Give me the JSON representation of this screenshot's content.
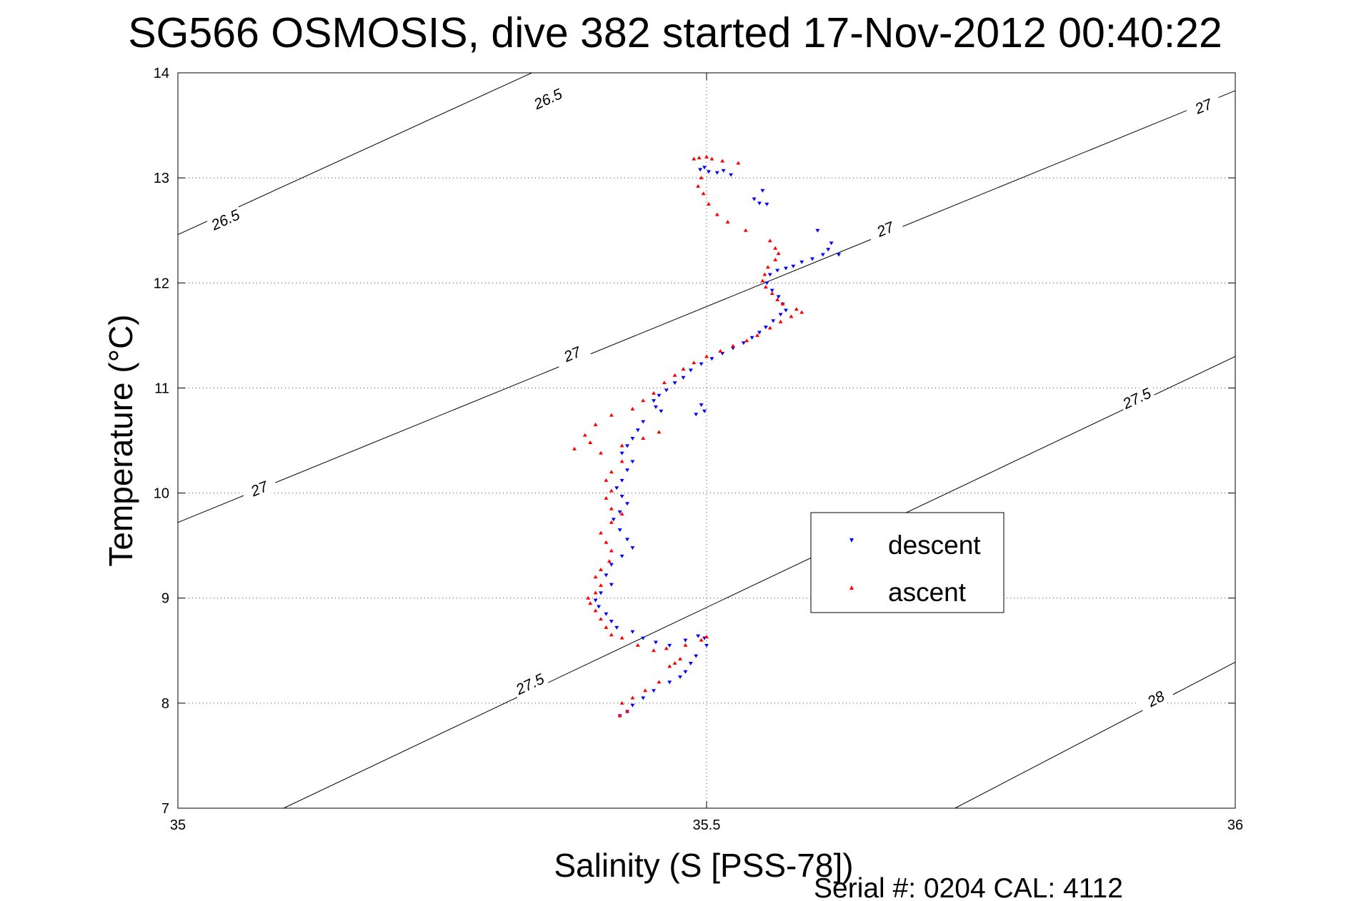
{
  "chart_data": {
    "type": "scatter",
    "title": "SG566 OSMOSIS, dive 382 started 17-Nov-2012 00:40:22",
    "xlabel": "Salinity (S [PSS-78])",
    "ylabel": "Temperature (°C)",
    "xlim": [
      35,
      36
    ],
    "ylim": [
      7,
      14
    ],
    "xticks": [
      35,
      35.5,
      36
    ],
    "xtick_labels": [
      "35",
      "35.5",
      "36"
    ],
    "yticks": [
      7,
      8,
      9,
      10,
      11,
      12,
      13,
      14
    ],
    "ytick_labels": [
      "7",
      "8",
      "9",
      "10",
      "11",
      "12",
      "13",
      "14"
    ],
    "grid": true,
    "legend_position": "center-right",
    "footer": "Serial #: 0204  CAL: 4112",
    "colors": {
      "descent": "#0000ff",
      "ascent": "#ff0000",
      "contour": "#000000"
    },
    "contours": [
      {
        "level": "26.5",
        "points": [
          [
            35.0,
            12.46
          ],
          [
            35.4,
            14.3
          ]
        ],
        "label_points": [
          [
            35.045,
            12.6
          ],
          [
            35.35,
            13.75
          ]
        ]
      },
      {
        "level": "27",
        "points": [
          [
            35.0,
            9.72
          ],
          [
            36.0,
            13.83
          ]
        ],
        "label_points": [
          [
            35.077,
            10.04
          ],
          [
            35.373,
            11.32
          ],
          [
            35.669,
            12.51
          ],
          [
            35.97,
            13.68
          ]
        ]
      },
      {
        "level": "27.5",
        "points": [
          [
            35.1,
            7.0
          ],
          [
            36.0,
            11.3
          ]
        ],
        "label_points": [
          [
            35.333,
            8.18
          ],
          [
            35.907,
            10.9
          ]
        ]
      },
      {
        "level": "28",
        "points": [
          [
            35.735,
            7.0
          ],
          [
            36.0,
            8.39
          ]
        ],
        "label_points": [
          [
            35.925,
            8.04
          ]
        ]
      }
    ],
    "series": [
      {
        "name": "descent",
        "marker": "triangle-down",
        "points": [
          [
            35.494,
            13.08
          ],
          [
            35.498,
            13.1
          ],
          [
            35.502,
            13.06
          ],
          [
            35.51,
            13.05
          ],
          [
            35.516,
            13.07
          ],
          [
            35.523,
            13.03
          ],
          [
            35.545,
            12.8
          ],
          [
            35.55,
            12.76
          ],
          [
            35.557,
            12.75
          ],
          [
            35.553,
            12.88
          ],
          [
            35.605,
            12.5
          ],
          [
            35.615,
            12.32
          ],
          [
            35.618,
            12.38
          ],
          [
            35.625,
            12.27
          ],
          [
            35.61,
            12.27
          ],
          [
            35.6,
            12.23
          ],
          [
            35.59,
            12.2
          ],
          [
            35.582,
            12.16
          ],
          [
            35.575,
            12.14
          ],
          [
            35.567,
            12.12
          ],
          [
            35.56,
            12.08
          ],
          [
            35.557,
            12.0
          ],
          [
            35.562,
            11.93
          ],
          [
            35.568,
            11.87
          ],
          [
            35.572,
            11.8
          ],
          [
            35.575,
            11.74
          ],
          [
            35.57,
            11.7
          ],
          [
            35.563,
            11.64
          ],
          [
            35.556,
            11.58
          ],
          [
            35.55,
            11.53
          ],
          [
            35.543,
            11.48
          ],
          [
            35.535,
            11.43
          ],
          [
            35.525,
            11.38
          ],
          [
            35.515,
            11.33
          ],
          [
            35.505,
            11.28
          ],
          [
            35.495,
            11.23
          ],
          [
            35.485,
            11.17
          ],
          [
            35.478,
            11.1
          ],
          [
            35.47,
            11.05
          ],
          [
            35.462,
            10.98
          ],
          [
            35.455,
            10.93
          ],
          [
            35.45,
            10.88
          ],
          [
            35.452,
            10.82
          ],
          [
            35.457,
            10.78
          ],
          [
            35.495,
            10.84
          ],
          [
            35.498,
            10.78
          ],
          [
            35.49,
            10.75
          ],
          [
            35.44,
            10.68
          ],
          [
            35.435,
            10.6
          ],
          [
            35.43,
            10.52
          ],
          [
            35.425,
            10.45
          ],
          [
            35.42,
            10.38
          ],
          [
            35.43,
            10.3
          ],
          [
            35.425,
            10.22
          ],
          [
            35.42,
            10.12
          ],
          [
            35.415,
            10.05
          ],
          [
            35.42,
            9.97
          ],
          [
            35.425,
            9.9
          ],
          [
            35.418,
            9.82
          ],
          [
            35.412,
            9.75
          ],
          [
            35.418,
            9.65
          ],
          [
            35.425,
            9.56
          ],
          [
            35.43,
            9.48
          ],
          [
            35.42,
            9.4
          ],
          [
            35.41,
            9.32
          ],
          [
            35.405,
            9.22
          ],
          [
            35.41,
            9.13
          ],
          [
            35.4,
            9.05
          ],
          [
            35.395,
            8.98
          ],
          [
            35.398,
            8.92
          ],
          [
            35.405,
            8.85
          ],
          [
            35.41,
            8.78
          ],
          [
            35.415,
            8.72
          ],
          [
            35.43,
            8.68
          ],
          [
            35.44,
            8.62
          ],
          [
            35.452,
            8.58
          ],
          [
            35.465,
            8.55
          ],
          [
            35.48,
            8.6
          ],
          [
            35.492,
            8.64
          ],
          [
            35.498,
            8.62
          ],
          [
            35.5,
            8.55
          ],
          [
            35.49,
            8.45
          ],
          [
            35.485,
            8.38
          ],
          [
            35.48,
            8.3
          ],
          [
            35.475,
            8.25
          ],
          [
            35.465,
            8.2
          ],
          [
            35.45,
            8.12
          ],
          [
            35.44,
            8.05
          ],
          [
            35.43,
            7.98
          ],
          [
            35.425,
            7.92
          ],
          [
            35.418,
            7.88
          ]
        ]
      },
      {
        "name": "ascent",
        "marker": "triangle-up",
        "points": [
          [
            35.488,
            13.18
          ],
          [
            35.493,
            13.19
          ],
          [
            35.5,
            13.2
          ],
          [
            35.505,
            13.18
          ],
          [
            35.515,
            13.16
          ],
          [
            35.53,
            13.14
          ],
          [
            35.495,
            13.0
          ],
          [
            35.492,
            12.92
          ],
          [
            35.497,
            12.85
          ],
          [
            35.502,
            12.75
          ],
          [
            35.51,
            12.65
          ],
          [
            35.52,
            12.58
          ],
          [
            35.537,
            12.5
          ],
          [
            35.56,
            12.4
          ],
          [
            35.565,
            12.33
          ],
          [
            35.568,
            12.28
          ],
          [
            35.565,
            12.22
          ],
          [
            35.558,
            12.15
          ],
          [
            35.555,
            12.08
          ],
          [
            35.553,
            12.02
          ],
          [
            35.556,
            11.96
          ],
          [
            35.562,
            11.9
          ],
          [
            35.567,
            11.84
          ],
          [
            35.572,
            11.8
          ],
          [
            35.585,
            11.75
          ],
          [
            35.59,
            11.72
          ],
          [
            35.58,
            11.68
          ],
          [
            35.57,
            11.63
          ],
          [
            35.56,
            11.57
          ],
          [
            35.548,
            11.5
          ],
          [
            35.538,
            11.45
          ],
          [
            35.525,
            11.4
          ],
          [
            35.513,
            11.35
          ],
          [
            35.5,
            11.3
          ],
          [
            35.488,
            11.24
          ],
          [
            35.478,
            11.18
          ],
          [
            35.47,
            11.12
          ],
          [
            35.46,
            11.05
          ],
          [
            35.45,
            10.95
          ],
          [
            35.44,
            10.88
          ],
          [
            35.43,
            10.8
          ],
          [
            35.41,
            10.74
          ],
          [
            35.395,
            10.65
          ],
          [
            35.385,
            10.55
          ],
          [
            35.39,
            10.48
          ],
          [
            35.375,
            10.42
          ],
          [
            35.4,
            10.38
          ],
          [
            35.42,
            10.45
          ],
          [
            35.44,
            10.52
          ],
          [
            35.455,
            10.58
          ],
          [
            35.42,
            10.3
          ],
          [
            35.41,
            10.2
          ],
          [
            35.405,
            10.12
          ],
          [
            35.41,
            10.02
          ],
          [
            35.405,
            9.95
          ],
          [
            35.41,
            9.85
          ],
          [
            35.42,
            9.8
          ],
          [
            35.41,
            9.72
          ],
          [
            35.4,
            9.62
          ],
          [
            35.405,
            9.53
          ],
          [
            35.41,
            9.45
          ],
          [
            35.408,
            9.35
          ],
          [
            35.4,
            9.27
          ],
          [
            35.395,
            9.2
          ],
          [
            35.4,
            9.12
          ],
          [
            35.395,
            9.05
          ],
          [
            35.388,
            9.0
          ],
          [
            35.39,
            8.95
          ],
          [
            35.395,
            8.88
          ],
          [
            35.4,
            8.8
          ],
          [
            35.405,
            8.72
          ],
          [
            35.41,
            8.65
          ],
          [
            35.42,
            8.62
          ],
          [
            35.435,
            8.55
          ],
          [
            35.45,
            8.5
          ],
          [
            35.462,
            8.52
          ],
          [
            35.48,
            8.55
          ],
          [
            35.495,
            8.6
          ],
          [
            35.5,
            8.63
          ],
          [
            35.475,
            8.42
          ],
          [
            35.47,
            8.38
          ],
          [
            35.465,
            8.35
          ],
          [
            35.455,
            8.2
          ],
          [
            35.442,
            8.12
          ],
          [
            35.43,
            8.05
          ],
          [
            35.42,
            8.0
          ],
          [
            35.425,
            7.92
          ],
          [
            35.418,
            7.88
          ]
        ]
      }
    ]
  }
}
